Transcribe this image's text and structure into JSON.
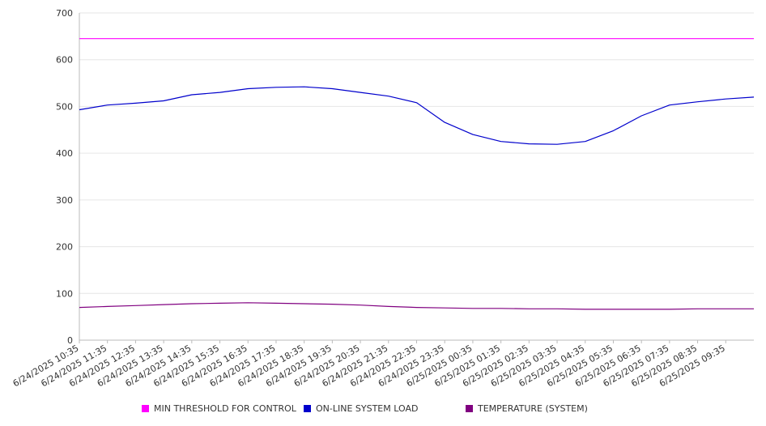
{
  "chart_data": {
    "type": "line",
    "title": "",
    "xlabel": "",
    "ylabel": "",
    "ylim": [
      0,
      700
    ],
    "yticks": [
      0,
      100,
      200,
      300,
      400,
      500,
      600,
      700
    ],
    "grid": true,
    "legend_position": "bottom",
    "x_start": "6/24/2025 10:35",
    "x_end": "6/25/2025 10:35",
    "x_tick_labels": [
      "6/24/2025 10:35",
      "6/24/2025 11:35",
      "6/24/2025 12:35",
      "6/24/2025 13:35",
      "6/24/2025 14:35",
      "6/24/2025 15:35",
      "6/24/2025 16:35",
      "6/24/2025 17:35",
      "6/24/2025 18:35",
      "6/24/2025 19:35",
      "6/24/2025 20:35",
      "6/24/2025 21:35",
      "6/24/2025 22:35",
      "6/24/2025 23:35",
      "6/25/2025 00:35",
      "6/25/2025 01:35",
      "6/25/2025 02:35",
      "6/25/2025 03:35",
      "6/25/2025 04:35",
      "6/25/2025 05:35",
      "6/25/2025 06:35",
      "6/25/2025 07:35",
      "6/25/2025 08:35",
      "6/25/2025 09:35"
    ],
    "x_points": [
      "6/24/2025 10:35",
      "6/24/2025 11:35",
      "6/24/2025 12:35",
      "6/24/2025 13:35",
      "6/24/2025 14:35",
      "6/24/2025 15:35",
      "6/24/2025 16:35",
      "6/24/2025 17:35",
      "6/24/2025 18:35",
      "6/24/2025 19:35",
      "6/24/2025 20:35",
      "6/24/2025 21:35",
      "6/24/2025 22:35",
      "6/24/2025 23:35",
      "6/25/2025 00:35",
      "6/25/2025 01:35",
      "6/25/2025 02:35",
      "6/25/2025 03:35",
      "6/25/2025 04:35",
      "6/25/2025 05:35",
      "6/25/2025 06:35",
      "6/25/2025 07:35",
      "6/25/2025 08:35",
      "6/25/2025 09:35",
      "6/25/2025 10:35"
    ],
    "series": [
      {
        "name": "MIN THRESHOLD FOR CONTROL",
        "color": "#ff00ff",
        "values": [
          645,
          645,
          645,
          645,
          645,
          645,
          645,
          645,
          645,
          645,
          645,
          645,
          645,
          645,
          645,
          645,
          645,
          645,
          645,
          645,
          645,
          645,
          645,
          645,
          645
        ]
      },
      {
        "name": "ON-LINE SYSTEM LOAD",
        "color": "#0000cc",
        "values": [
          493,
          503,
          507,
          512,
          525,
          530,
          538,
          541,
          542,
          538,
          530,
          522,
          508,
          466,
          440,
          425,
          420,
          419,
          425,
          448,
          480,
          503,
          510,
          516,
          520
        ]
      },
      {
        "name": "TEMPERATURE (SYSTEM)",
        "color": "#800080",
        "values": [
          70,
          72,
          74,
          76,
          78,
          79,
          80,
          79,
          78,
          77,
          75,
          72,
          70,
          69,
          68,
          68,
          67,
          67,
          66,
          66,
          66,
          66,
          67,
          67,
          67
        ]
      }
    ]
  }
}
